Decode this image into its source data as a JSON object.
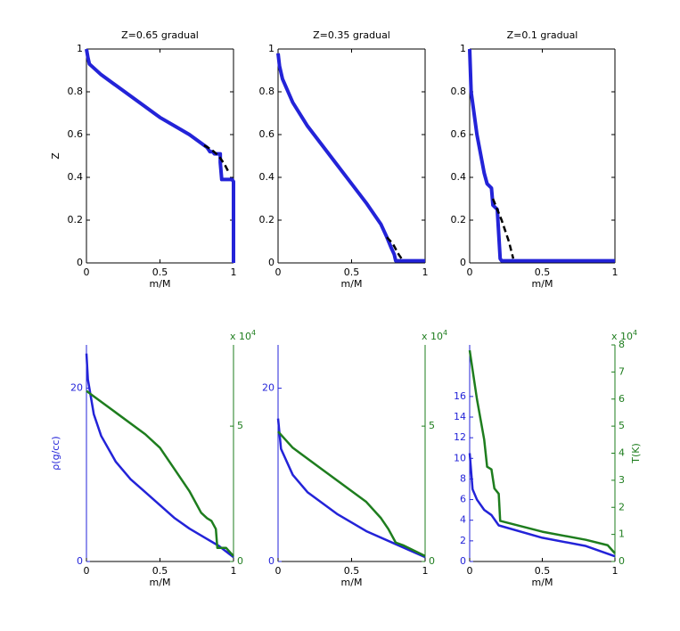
{
  "chart_data": [
    {
      "type": "line",
      "title": "Z=0.65 gradual",
      "xlabel": "m/M",
      "ylabel": "Z",
      "xlim": [
        0,
        1
      ],
      "xticks": [
        0,
        0.5,
        1
      ],
      "ylim": [
        0,
        1
      ],
      "yticks": [
        0,
        0.2,
        0.4,
        0.6,
        0.8,
        1
      ],
      "series": [
        {
          "color": "#2323d8",
          "width": 4,
          "dashed": false,
          "x": [
            0,
            0.01,
            0.02,
            0.1,
            0.2,
            0.3,
            0.4,
            0.5,
            0.6,
            0.7,
            0.8,
            0.82,
            0.84,
            0.86,
            0.87,
            0.91,
            0.91,
            0.92,
            0.99,
            1,
            1
          ],
          "values": [
            1,
            0.96,
            0.93,
            0.88,
            0.83,
            0.78,
            0.73,
            0.68,
            0.64,
            0.6,
            0.55,
            0.54,
            0.52,
            0.52,
            0.51,
            0.51,
            0.47,
            0.39,
            0.39,
            0.38,
            0
          ]
        },
        {
          "color": "#000000",
          "width": 2.5,
          "dashed": true,
          "x": [
            0.8,
            0.85,
            0.9,
            0.94,
            0.97
          ],
          "values": [
            0.55,
            0.53,
            0.5,
            0.46,
            0.42
          ]
        }
      ]
    },
    {
      "type": "line",
      "title": "Z=0.35 gradual",
      "xlabel": "m/M",
      "xlim": [
        0,
        1
      ],
      "xticks": [
        0,
        0.5,
        1
      ],
      "ylim": [
        0,
        1
      ],
      "yticks": [
        0,
        0.2,
        0.4,
        0.6,
        0.8,
        1
      ],
      "series": [
        {
          "color": "#2323d8",
          "width": 4,
          "dashed": false,
          "x": [
            0,
            0.01,
            0.03,
            0.1,
            0.2,
            0.3,
            0.4,
            0.5,
            0.6,
            0.7,
            0.74,
            0.77,
            0.79,
            0.8,
            0.85,
            1
          ],
          "values": [
            0.98,
            0.92,
            0.86,
            0.75,
            0.64,
            0.55,
            0.46,
            0.37,
            0.28,
            0.18,
            0.12,
            0.07,
            0.04,
            0.01,
            0.01,
            0.01
          ]
        },
        {
          "color": "#000000",
          "width": 2.5,
          "dashed": true,
          "x": [
            0.74,
            0.78,
            0.82,
            0.85
          ],
          "values": [
            0.12,
            0.09,
            0.04,
            0.01
          ]
        }
      ]
    },
    {
      "type": "line",
      "title": "Z=0.1 gradual",
      "xlabel": "m/M",
      "xlim": [
        0,
        1
      ],
      "xticks": [
        0,
        0.5,
        1
      ],
      "ylim": [
        0,
        1
      ],
      "yticks": [
        0,
        0.2,
        0.4,
        0.6,
        0.8,
        1
      ],
      "series": [
        {
          "color": "#2323d8",
          "width": 4,
          "dashed": false,
          "x": [
            0,
            0.01,
            0.05,
            0.1,
            0.12,
            0.15,
            0.16,
            0.19,
            0.21,
            0.22,
            1
          ],
          "values": [
            1,
            0.8,
            0.6,
            0.42,
            0.37,
            0.35,
            0.27,
            0.25,
            0.02,
            0.01,
            0.01
          ]
        },
        {
          "color": "#000000",
          "width": 2.5,
          "dashed": true,
          "x": [
            0.16,
            0.22,
            0.27,
            0.3
          ],
          "values": [
            0.3,
            0.2,
            0.1,
            0.02
          ]
        }
      ]
    },
    {
      "type": "line",
      "xlabel": "m/M",
      "ylabel": "ρ(g/cc)",
      "xlim": [
        0,
        1
      ],
      "xticks": [
        0,
        0.5,
        1
      ],
      "ylim": [
        0,
        25
      ],
      "yticks": [
        0,
        20
      ],
      "ycolor": "#2323d8",
      "y2lim": [
        0,
        8
      ],
      "y2ticks": [
        0,
        5
      ],
      "y2color": "#1e7d1e",
      "y2_multiplier": "x 10",
      "y2_exponent": 4,
      "series": [
        {
          "color": "#2323d8",
          "width": 2.5,
          "dashed": false,
          "x": [
            0,
            0.01,
            0.05,
            0.1,
            0.2,
            0.3,
            0.4,
            0.5,
            0.6,
            0.7,
            0.8,
            0.9,
            1
          ],
          "values": [
            24,
            21,
            17,
            14.5,
            11.5,
            9.5,
            8,
            6.5,
            5,
            3.8,
            2.8,
            1.8,
            0.5
          ]
        },
        {
          "color": "#1e7d1e",
          "width": 2.5,
          "dashed": false,
          "axis": "y2",
          "x": [
            0,
            0.05,
            0.2,
            0.4,
            0.5,
            0.6,
            0.7,
            0.78,
            0.82,
            0.85,
            0.88,
            0.89,
            0.95,
            1
          ],
          "values": [
            6.3,
            6.1,
            5.5,
            4.7,
            4.2,
            3.4,
            2.6,
            1.8,
            1.6,
            1.5,
            1.2,
            0.5,
            0.5,
            0.2
          ]
        }
      ]
    },
    {
      "type": "line",
      "xlabel": "m/M",
      "xlim": [
        0,
        1
      ],
      "xticks": [
        0,
        0.5,
        1
      ],
      "ylim": [
        0,
        25
      ],
      "yticks": [
        0,
        20
      ],
      "ycolor": "#2323d8",
      "y2lim": [
        0,
        8
      ],
      "y2ticks": [
        0,
        5
      ],
      "y2color": "#1e7d1e",
      "y2_multiplier": "x 10",
      "y2_exponent": 4,
      "series": [
        {
          "color": "#2323d8",
          "width": 2.5,
          "dashed": false,
          "x": [
            0,
            0.02,
            0.1,
            0.2,
            0.4,
            0.6,
            0.8,
            1
          ],
          "values": [
            16.5,
            13,
            10,
            8,
            5.5,
            3.5,
            2,
            0.5
          ]
        },
        {
          "color": "#1e7d1e",
          "width": 2.5,
          "dashed": false,
          "axis": "y2",
          "x": [
            0,
            0.1,
            0.3,
            0.5,
            0.6,
            0.7,
            0.75,
            0.8,
            0.85,
            1
          ],
          "values": [
            4.8,
            4.2,
            3.4,
            2.6,
            2.2,
            1.6,
            1.2,
            0.7,
            0.6,
            0.2
          ]
        }
      ]
    },
    {
      "type": "line",
      "xlabel": "m/M",
      "y2label": "T(K)",
      "xlim": [
        0,
        1
      ],
      "xticks": [
        0,
        0.5,
        1
      ],
      "ylim": [
        0,
        21
      ],
      "yticks": [
        0,
        2,
        4,
        6,
        8,
        10,
        12,
        14,
        16
      ],
      "ycolor": "#2323d8",
      "y2lim": [
        0,
        8
      ],
      "y2ticks": [
        0,
        1,
        2,
        3,
        4,
        5,
        6,
        7,
        8
      ],
      "y2color": "#1e7d1e",
      "y2_multiplier": "x 10",
      "y2_exponent": 4,
      "series": [
        {
          "color": "#2323d8",
          "width": 2.5,
          "dashed": false,
          "x": [
            0,
            0.02,
            0.05,
            0.1,
            0.15,
            0.2,
            0.5,
            0.8,
            1
          ],
          "values": [
            10.5,
            7,
            6,
            5,
            4.5,
            3.5,
            2.3,
            1.5,
            0.5
          ]
        },
        {
          "color": "#1e7d1e",
          "width": 2.5,
          "dashed": false,
          "axis": "y2",
          "x": [
            0,
            0.05,
            0.1,
            0.12,
            0.15,
            0.17,
            0.2,
            0.21,
            0.5,
            0.8,
            0.95,
            1
          ],
          "values": [
            7.8,
            6,
            4.5,
            3.5,
            3.4,
            2.7,
            2.5,
            1.5,
            1.1,
            0.8,
            0.6,
            0.3
          ]
        }
      ]
    }
  ]
}
